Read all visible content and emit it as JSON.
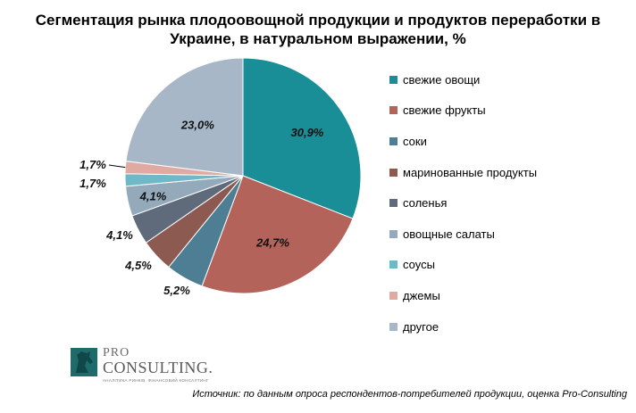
{
  "title_lines": [
    "Сегментация рынка плодоовощной продукции и продуктов переработки в",
    "Украине, в натуральном выражении, %"
  ],
  "chart_data": {
    "type": "pie",
    "title": "Сегментация рынка плодоовощной продукции и продуктов переработки в Украине, в натуральном выражении, %",
    "categories": [
      "свежие овощи",
      "свежие фрукты",
      "соки",
      "маринованные продукты",
      "соленья",
      "овощные салаты",
      "соусы",
      "джемы",
      "другое"
    ],
    "values": [
      30.9,
      24.7,
      5.2,
      4.5,
      4.1,
      4.1,
      1.7,
      1.7,
      23.0
    ],
    "value_labels": [
      "30,9%",
      "24,7%",
      "5,2%",
      "4,5%",
      "4,1%",
      "4,1%",
      "1,7%",
      "1,7%",
      "23,0%"
    ],
    "colors": [
      "#1a8e96",
      "#b4635b",
      "#4d7e94",
      "#8c5a50",
      "#5f6a7a",
      "#94aabb",
      "#6fb8c8",
      "#e0a9a2",
      "#a7b7c8"
    ],
    "legend_position": "right"
  },
  "logo": {
    "line1": "PRO",
    "line2": "CONSULTING.",
    "tagline": "АНАЛІТИКА РИНКІВ. ФІНАНСОВИЙ КОНСАЛТИНГ"
  },
  "source": "Источник: по данным опроса респондентов-потребителей продукции, оценка Pro-Consulting"
}
